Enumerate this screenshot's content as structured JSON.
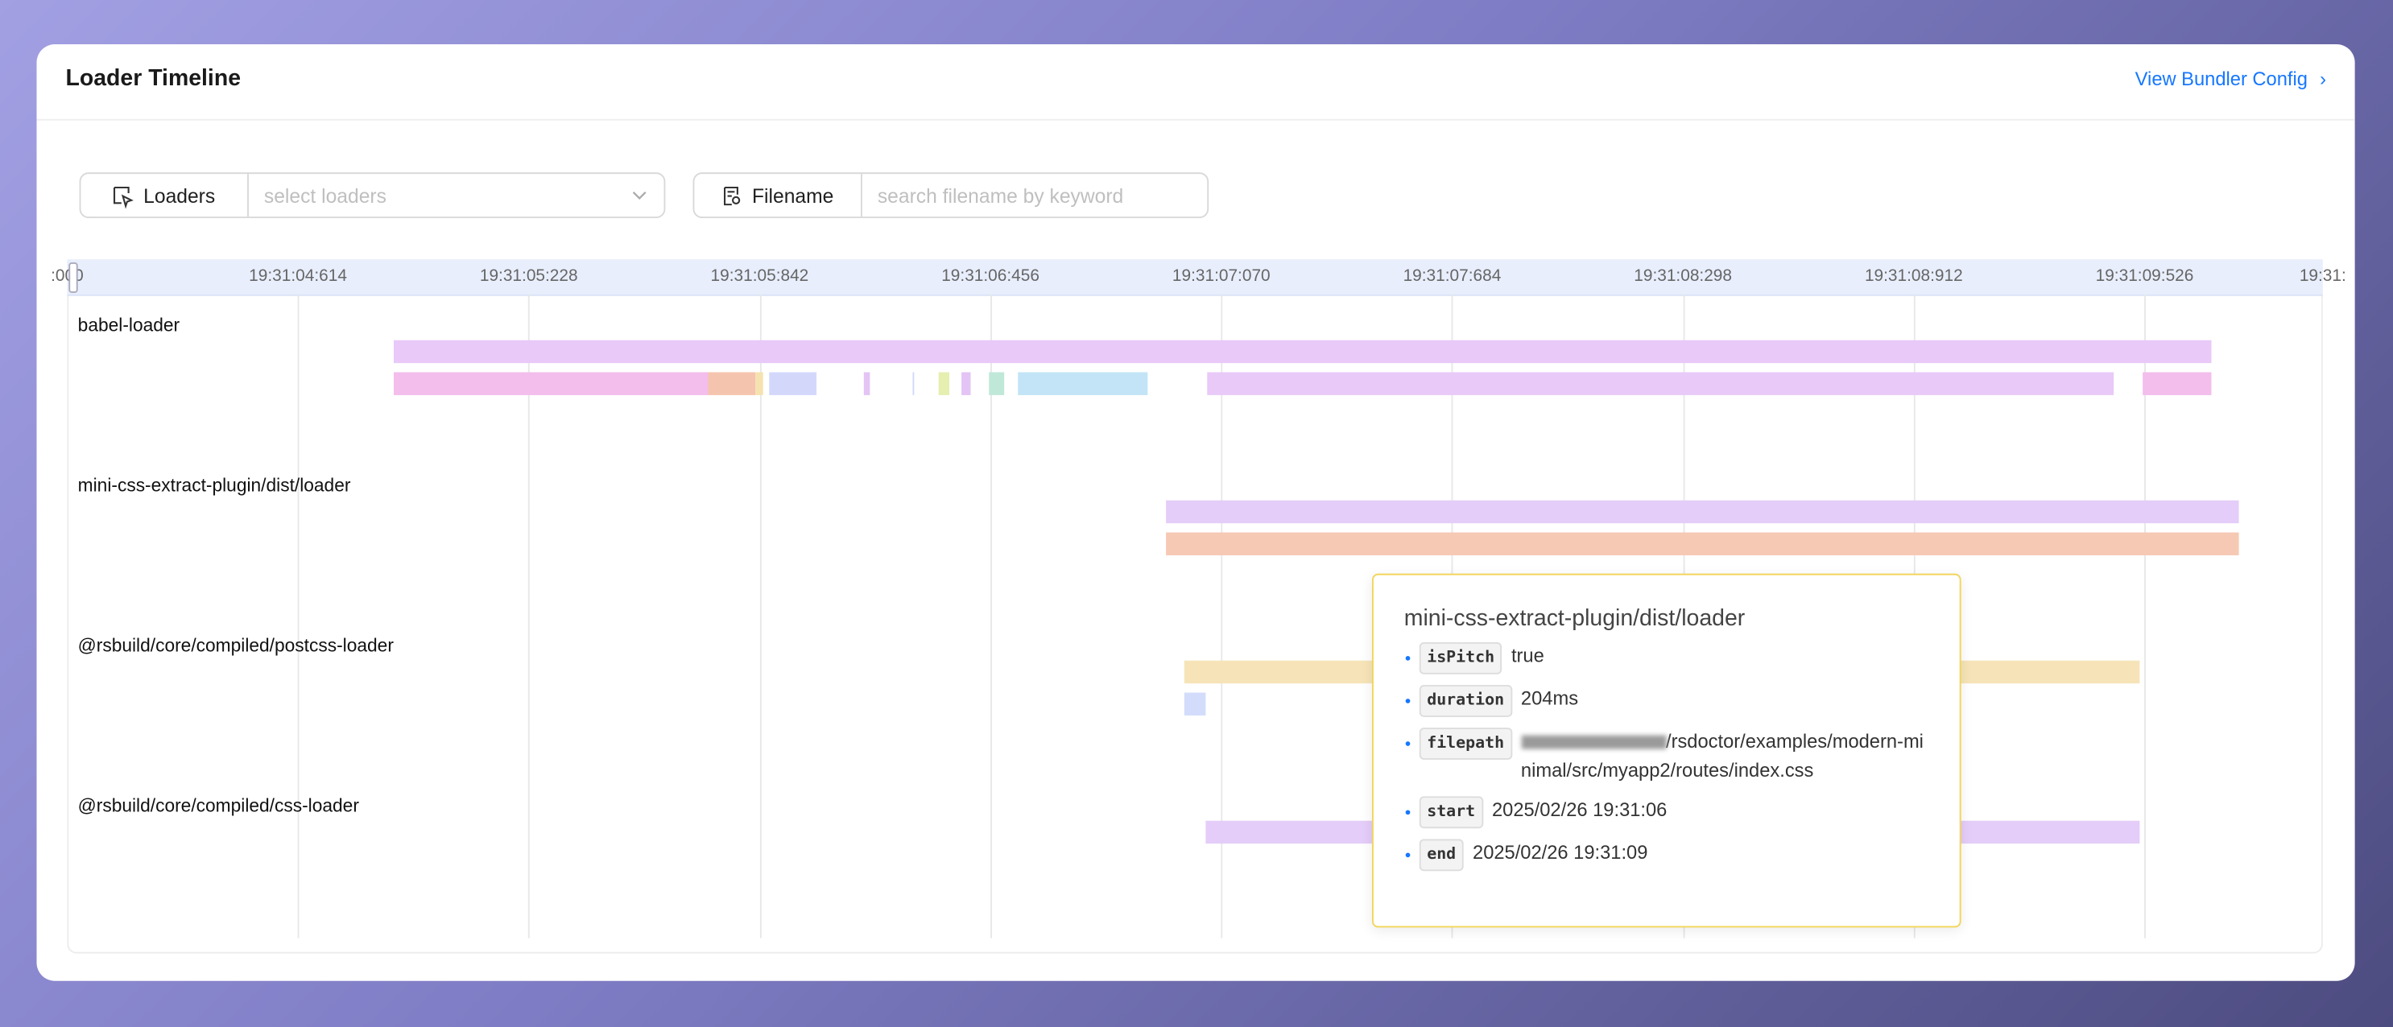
{
  "header": {
    "title": "Loader Timeline",
    "link": "View Bundler Config"
  },
  "filters": [
    {
      "label": "Loaders",
      "placeholder": "select loaders"
    },
    {
      "label": "Filename",
      "placeholder": "search filename by keyword"
    }
  ],
  "timeline": {
    "xlim": [
      0,
      6.0
    ],
    "xticks": [
      {
        "value": 0,
        "label": ":000"
      },
      {
        "value": 0.614,
        "label": "19:31:04:614"
      },
      {
        "value": 1.228,
        "label": "19:31:05:228"
      },
      {
        "value": 1.842,
        "label": "19:31:05:842"
      },
      {
        "value": 2.456,
        "label": "19:31:06:456"
      },
      {
        "value": 3.07,
        "label": "19:31:07:070"
      },
      {
        "value": 3.684,
        "label": "19:31:07:684"
      },
      {
        "value": 4.298,
        "label": "19:31:08:298"
      },
      {
        "value": 4.912,
        "label": "19:31:08:912"
      },
      {
        "value": 5.526,
        "label": "19:31:09:526"
      },
      {
        "value": 6.0,
        "label": "19:31:"
      }
    ],
    "lanes": [
      {
        "name": "babel-loader",
        "rows": [
          [
            {
              "start": 0.868,
              "end": 5.702,
              "color": "#e8c9f8"
            }
          ],
          [
            {
              "start": 0.868,
              "end": 1.703,
              "color": "#f3bdec"
            },
            {
              "start": 1.703,
              "end": 1.829,
              "color": "#f5c4ae"
            },
            {
              "start": 1.829,
              "end": 1.853,
              "color": "#f5e2b0"
            },
            {
              "start": 1.869,
              "end": 1.995,
              "color": "#d3d8fb"
            },
            {
              "start": 2.121,
              "end": 2.137,
              "color": "#e3c4f5"
            },
            {
              "start": 2.247,
              "end": 2.255,
              "color": "#d3d8fb"
            },
            {
              "start": 2.32,
              "end": 2.348,
              "color": "#e6eeb0"
            },
            {
              "start": 2.38,
              "end": 2.405,
              "color": "#e3c4f5"
            },
            {
              "start": 2.453,
              "end": 2.494,
              "color": "#bfe8d9"
            },
            {
              "start": 2.53,
              "end": 2.875,
              "color": "#c2e4f6"
            },
            {
              "start": 3.033,
              "end": 5.442,
              "color": "#e8c9f8"
            },
            {
              "start": 5.523,
              "end": 5.702,
              "color": "#f3bdec"
            }
          ]
        ]
      },
      {
        "name": "mini-css-extract-plugin/dist/loader",
        "rows": [
          [
            {
              "start": 2.924,
              "end": 5.775,
              "color": "#e4cdf8"
            }
          ],
          [
            {
              "start": 2.924,
              "end": 5.775,
              "color": "#f6c9b4"
            }
          ]
        ]
      },
      {
        "name": "@rsbuild/core/compiled/postcss-loader",
        "rows": [
          [
            {
              "start": 2.972,
              "end": 5.511,
              "color": "#f6e4b8"
            }
          ],
          [
            {
              "start": 2.972,
              "end": 3.029,
              "color": "#d3dcfb"
            }
          ]
        ]
      },
      {
        "name": "@rsbuild/core/compiled/css-loader",
        "rows": [
          [
            {
              "start": 3.029,
              "end": 5.511,
              "color": "#e4cdf8"
            }
          ]
        ]
      }
    ]
  },
  "tooltip": {
    "title": "mini-css-extract-plugin/dist/loader",
    "fields": [
      {
        "key": "isPitch",
        "value": "true"
      },
      {
        "key": "duration",
        "value": "204ms"
      },
      {
        "key": "filepath",
        "value": "/rsdoctor/examples/modern-minimal/src/myapp2/routes/index.css"
      },
      {
        "key": "start",
        "value": "2025/02/26 19:31:06"
      },
      {
        "key": "end",
        "value": "2025/02/26 19:31:09"
      }
    ]
  }
}
